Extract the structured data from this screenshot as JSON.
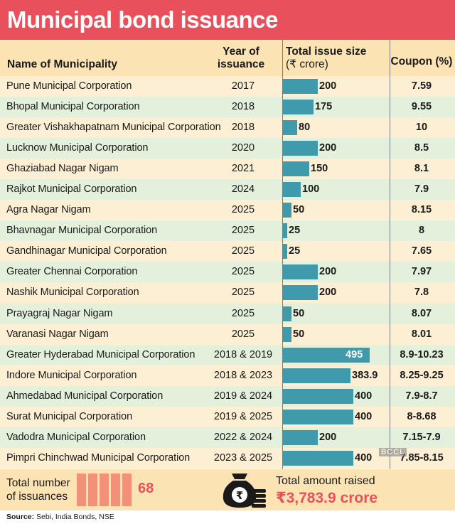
{
  "title": "Municipal bond issuance",
  "headers": {
    "name": "Name of Municipality",
    "year_line1": "Year of",
    "year_line2": "issuance",
    "size_line1": "Total issue size",
    "size_line2": "(₹ crore)",
    "coupon": "Coupon (%)"
  },
  "chart_data": {
    "type": "bar",
    "title": "Municipal bond issuance",
    "xlabel": "Total issue size (₹ crore)",
    "ylabel": "Name of Municipality",
    "xlim": [
      0,
      495
    ],
    "categories": [
      "Pune Municipal Corporation",
      "Bhopal Municipal Corporation",
      "Greater Vishakhapatnam Municipal Corporation",
      "Lucknow Municipal Corporation",
      "Ghaziabad Nagar Nigam",
      "Rajkot Municipal Corporation",
      "Agra Nagar Nigam",
      "Bhavnagar Municipal Corporation",
      "Gandhinagar Municipal Corporation",
      "Greater Chennai Corporation",
      "Nashik Municipal Corporation",
      "Prayagraj Nagar Nigam",
      "Varanasi Nagar Nigam",
      "Greater Hyderabad Municipal Corporation",
      "Indore Municipal Corporation",
      "Ahmedabad Municipal Corporation",
      "Surat Municipal Corporation",
      "Vadodra Municipal Corporation",
      "Pimpri Chinchwad Municipal Corporation"
    ],
    "values": [
      200,
      175,
      80,
      200,
      150,
      100,
      50,
      25,
      25,
      200,
      200,
      50,
      50,
      495,
      383.9,
      400,
      400,
      200,
      400
    ],
    "value_labels": [
      "200",
      "175",
      "80",
      "200",
      "150",
      "100",
      "50",
      "25",
      "25",
      "200",
      "200",
      "50",
      "50",
      "495",
      "383.9",
      "400",
      "400",
      "200",
      "400"
    ],
    "years": [
      "2017",
      "2018",
      "2018",
      "2020",
      "2021",
      "2024",
      "2025",
      "2025",
      "2025",
      "2025",
      "2025",
      "2025",
      "2025",
      "2018 & 2019",
      "2018 & 2023",
      "2019 & 2024",
      "2019 & 2025",
      "2022 & 2024",
      "2023 & 2025"
    ],
    "coupons": [
      "7.59",
      "9.55",
      "10",
      "8.5",
      "8.1",
      "7.9",
      "8.15",
      "8",
      "7.65",
      "7.97",
      "7.8",
      "8.07",
      "8.01",
      "8.9-10.23",
      "8.25-9.25",
      "7.9-8.7",
      "8-8.68",
      "7.15-7.9",
      "7.85-8.15"
    ]
  },
  "totals": {
    "issuances_line1": "Total number",
    "issuances_line2": "of issuances",
    "issuances_value": "68",
    "amount_label": "Total amount raised",
    "amount_value": "₹3,783.9 crore"
  },
  "icons": {
    "money_bag": "money-bag-icon",
    "rupee": "₹"
  },
  "watermark": "BCCL",
  "source_label": "Source:",
  "source_text": "Sebi, India Bonds, NSE",
  "colors": {
    "title_bg": "#e8505b",
    "header_bg": "#fbe3b4",
    "row_odd": "#fcefd3",
    "row_even": "#e3f0dc",
    "bar": "#3f9aab",
    "accent": "#e8505b",
    "stripe": "#f29178"
  }
}
